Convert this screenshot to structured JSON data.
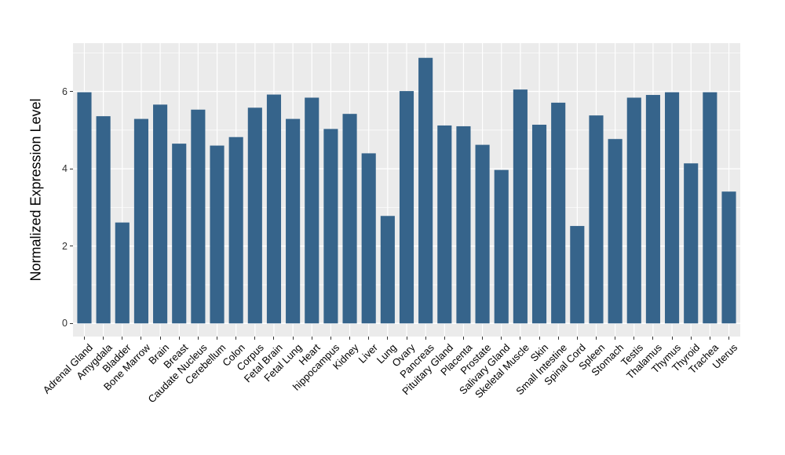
{
  "chart_data": {
    "type": "bar",
    "title": "",
    "xlabel": "",
    "ylabel": "Normalized Expression Level",
    "categories": [
      "Adrenal Gland",
      "Amygdala",
      "Bladder",
      "Bone Marrow",
      "Brain",
      "Breast",
      "Caudate Nucleus",
      "Cerebellum",
      "Colon",
      "Corpus",
      "Fetal Brain",
      "Fetal Lung",
      "Heart",
      "hippocampus",
      "Kidney",
      "Liver",
      "Lung",
      "Ovary",
      "Pancreas",
      "Pituitary Gland",
      "Placenta",
      "Prostate",
      "Salivary Gland",
      "Skeletal Muscle",
      "Skin",
      "Small Intestine",
      "Spinal Cord",
      "Spleen",
      "Stomach",
      "Testis",
      "Thalamus",
      "Thymus",
      "Thyroid",
      "Trachea",
      "Uterus"
    ],
    "values": [
      5.98,
      5.36,
      2.61,
      5.29,
      5.66,
      4.65,
      5.53,
      4.6,
      4.82,
      5.58,
      5.92,
      5.29,
      5.84,
      5.03,
      5.42,
      4.4,
      2.78,
      6.01,
      6.87,
      5.12,
      5.1,
      4.62,
      3.97,
      6.05,
      5.14,
      5.71,
      2.52,
      5.38,
      4.77,
      5.84,
      5.91,
      5.98,
      4.14,
      5.98,
      3.41
    ],
    "y_ticks": [
      0,
      2,
      4,
      6
    ],
    "y_minor_ticks": [
      1,
      3,
      5,
      7
    ],
    "ylim": [
      -0.34,
      7.25
    ],
    "bar_width_frac": 0.75,
    "grid": true,
    "legend_position": "none",
    "colors": {
      "bar_fill": "#36648B",
      "panel_background": "#EBEBEB",
      "grid_major": "#FFFFFF",
      "grid_minor": "#FFFFFF",
      "tick_mark": "#333333",
      "axis_text": "#303030",
      "x_axis_text": "#000000",
      "axis_title": "#000000"
    }
  }
}
